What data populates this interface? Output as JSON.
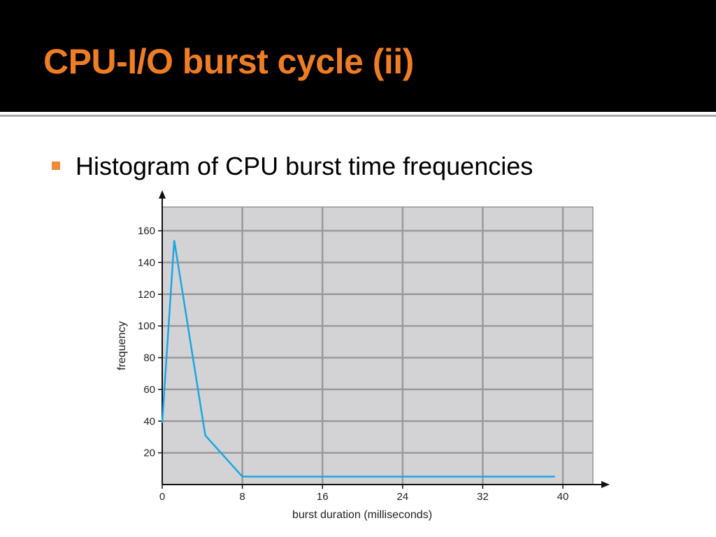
{
  "slide": {
    "title": "CPU-I/O burst cycle (ii)",
    "bullet": "Histogram of CPU burst time frequencies"
  },
  "colors": {
    "title_color": "#ef7d23",
    "bullet_marker": "#f08a36",
    "title_bar": "#000000",
    "plot_background": "#d3d3d5",
    "grid": "#9a9a9a",
    "series_line": "#1aa6e2"
  },
  "chart_data": {
    "type": "line",
    "title": "",
    "xlabel": "burst duration (milliseconds)",
    "ylabel": "frequency",
    "xlim": [
      0,
      43
    ],
    "ylim": [
      0,
      175
    ],
    "x_ticks": [
      0,
      8,
      16,
      24,
      32,
      40
    ],
    "y_ticks": [
      20,
      40,
      60,
      80,
      100,
      120,
      140,
      160
    ],
    "grid": true,
    "legend": "none",
    "series": [
      {
        "x": [
          0,
          1.2,
          4.3,
          8,
          16,
          24,
          32,
          39.2
        ],
        "y": [
          39,
          154,
          31,
          5,
          5,
          5,
          5,
          5
        ]
      }
    ]
  }
}
